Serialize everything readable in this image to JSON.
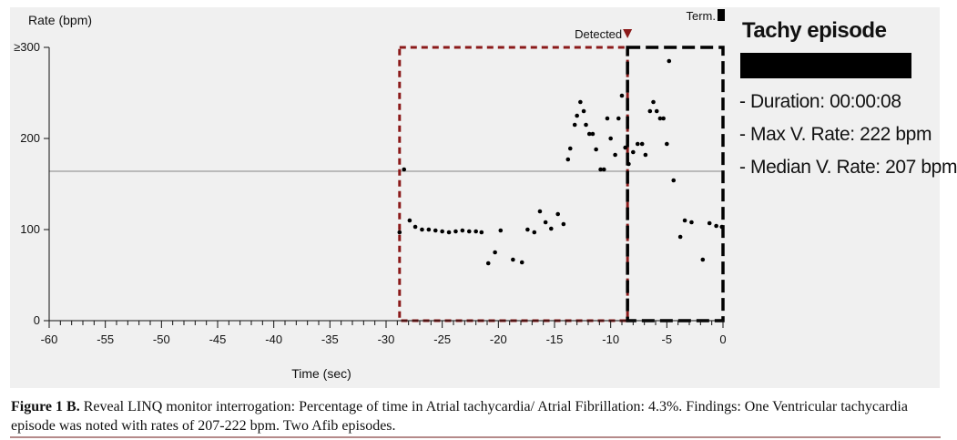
{
  "chart_data": {
    "type": "scatter",
    "title": "",
    "xlabel": "Time (sec)",
    "ylabel": "Rate (bpm)",
    "xlim": [
      -60,
      0
    ],
    "ylim": [
      0,
      300
    ],
    "x_ticks": [
      -60,
      -55,
      -50,
      -45,
      -40,
      -35,
      -30,
      -25,
      -20,
      -15,
      -10,
      -5,
      0
    ],
    "x_minor_step": 1,
    "y_ticks": [
      {
        "value": 0,
        "label": "0"
      },
      {
        "value": 100,
        "label": "100"
      },
      {
        "value": 200,
        "label": "200"
      },
      {
        "value": 300,
        "label": "≥300"
      }
    ],
    "reference_line": {
      "y": 164,
      "color": "#9a9a9a"
    },
    "regions": [
      {
        "x0": -28.8,
        "x1": -8.5,
        "y0": 0,
        "y1": 300,
        "color": "#8b1a1a",
        "style": "dashed"
      },
      {
        "x0": -8.5,
        "x1": 0,
        "y0": 0,
        "y1": 300,
        "color": "#000000",
        "style": "dashed"
      }
    ],
    "markers": [
      {
        "label": "Detected",
        "x": -8.5,
        "color": "#8b1a1a"
      },
      {
        "label": "Term.",
        "x": 0,
        "color": "#000000"
      }
    ],
    "points": [
      {
        "x": -28.8,
        "y": 97
      },
      {
        "x": -28.4,
        "y": 166
      },
      {
        "x": -27.9,
        "y": 110
      },
      {
        "x": -27.4,
        "y": 103
      },
      {
        "x": -26.8,
        "y": 100
      },
      {
        "x": -26.2,
        "y": 100
      },
      {
        "x": -25.6,
        "y": 99
      },
      {
        "x": -25.0,
        "y": 98
      },
      {
        "x": -24.4,
        "y": 97
      },
      {
        "x": -23.8,
        "y": 98
      },
      {
        "x": -23.2,
        "y": 99
      },
      {
        "x": -22.6,
        "y": 98
      },
      {
        "x": -22.0,
        "y": 98
      },
      {
        "x": -21.5,
        "y": 97
      },
      {
        "x": -20.9,
        "y": 63
      },
      {
        "x": -20.3,
        "y": 75
      },
      {
        "x": -19.8,
        "y": 99
      },
      {
        "x": -18.7,
        "y": 67
      },
      {
        "x": -17.9,
        "y": 64
      },
      {
        "x": -17.4,
        "y": 100
      },
      {
        "x": -16.8,
        "y": 97
      },
      {
        "x": -16.3,
        "y": 120
      },
      {
        "x": -15.8,
        "y": 108
      },
      {
        "x": -15.3,
        "y": 101
      },
      {
        "x": -14.7,
        "y": 117
      },
      {
        "x": -14.2,
        "y": 106
      },
      {
        "x": -13.8,
        "y": 177
      },
      {
        "x": -13.6,
        "y": 189
      },
      {
        "x": -13.2,
        "y": 215
      },
      {
        "x": -13.0,
        "y": 225
      },
      {
        "x": -12.7,
        "y": 240
      },
      {
        "x": -12.4,
        "y": 230
      },
      {
        "x": -12.2,
        "y": 215
      },
      {
        "x": -11.9,
        "y": 205
      },
      {
        "x": -11.6,
        "y": 205
      },
      {
        "x": -11.3,
        "y": 188
      },
      {
        "x": -10.9,
        "y": 166
      },
      {
        "x": -10.6,
        "y": 166
      },
      {
        "x": -10.3,
        "y": 222
      },
      {
        "x": -10.0,
        "y": 200
      },
      {
        "x": -9.6,
        "y": 182
      },
      {
        "x": -9.3,
        "y": 222
      },
      {
        "x": -9.0,
        "y": 247
      },
      {
        "x": -8.7,
        "y": 190
      },
      {
        "x": -8.4,
        "y": 172
      },
      {
        "x": -8.0,
        "y": 185
      },
      {
        "x": -7.6,
        "y": 194
      },
      {
        "x": -7.2,
        "y": 194
      },
      {
        "x": -6.9,
        "y": 182
      },
      {
        "x": -6.5,
        "y": 230
      },
      {
        "x": -6.2,
        "y": 240
      },
      {
        "x": -5.9,
        "y": 230
      },
      {
        "x": -5.6,
        "y": 222
      },
      {
        "x": -5.3,
        "y": 222
      },
      {
        "x": -5.0,
        "y": 194
      },
      {
        "x": -4.8,
        "y": 285
      },
      {
        "x": -4.4,
        "y": 154
      },
      {
        "x": -3.8,
        "y": 92
      },
      {
        "x": -3.4,
        "y": 110
      },
      {
        "x": -2.8,
        "y": 108
      },
      {
        "x": -1.8,
        "y": 67
      },
      {
        "x": -1.2,
        "y": 107
      },
      {
        "x": -0.6,
        "y": 104
      },
      {
        "x": -0.1,
        "y": 103
      }
    ]
  },
  "episode_panel": {
    "title": "Tachy episode",
    "lines": [
      "- Duration: 00:00:08",
      "- Max V. Rate: 222 bpm",
      "- Median V. Rate: 207 bpm"
    ]
  },
  "caption": {
    "label": "Figure 1 B.",
    "text": " Reveal LINQ monitor interrogation: Percentage of time in Atrial tachycardia/ Atrial Fibrillation: 4.3%. Findings: One Ventricular tachycardia episode was noted with rates of 207-222 bpm. Two Afib episodes."
  },
  "colors": {
    "panel_background": "#f0f0f0",
    "detected": "#8b1a1a",
    "terminated": "#000000",
    "reference_line": "#9a9a9a",
    "points": "#000000"
  }
}
